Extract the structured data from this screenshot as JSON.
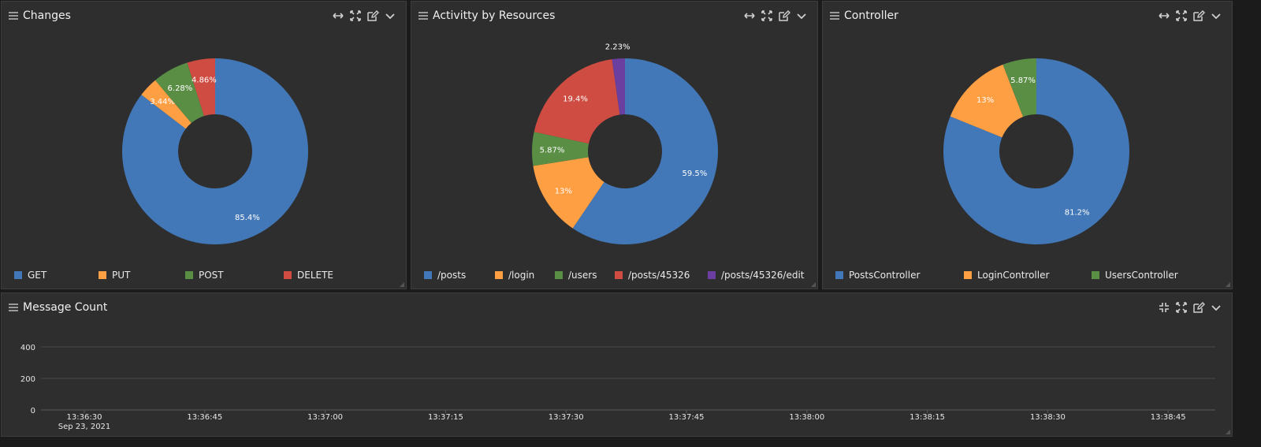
{
  "panels": {
    "changes": {
      "title": "Changes"
    },
    "activity": {
      "title": "Activitty by Resources"
    },
    "controller": {
      "title": "Controller"
    },
    "message_count": {
      "title": "Message Count"
    }
  },
  "colors": {
    "blue": "#4277b8",
    "orange": "#ff9f43",
    "green": "#5a8e45",
    "red": "#cf4c42",
    "purple": "#6a3fa0",
    "panel_bg": "#2e2e2e"
  },
  "icons": {
    "header_controls_top": [
      "expand-horizontal-icon",
      "fullscreen-icon",
      "edit-icon",
      "chevron-down-icon"
    ],
    "header_controls_bottom": [
      "collapse-icon",
      "fullscreen-icon",
      "edit-icon",
      "chevron-down-icon"
    ]
  },
  "chart_data": [
    {
      "type": "pie",
      "title": "Changes",
      "categories": [
        "GET",
        "PUT",
        "POST",
        "DELETE"
      ],
      "values": [
        85.4,
        3.44,
        6.28,
        4.86
      ],
      "slice_labels": [
        "85.4%",
        "3.44%",
        "6.28%",
        "4.86%"
      ],
      "colors": [
        "#4277b8",
        "#ff9f43",
        "#5a8e45",
        "#cf4c42"
      ],
      "legend_position": "bottom"
    },
    {
      "type": "pie",
      "title": "Activitty by Resources",
      "categories": [
        "/posts",
        "/login",
        "/users",
        "/posts/45326",
        "/posts/45326/edit"
      ],
      "values": [
        59.5,
        13,
        5.87,
        19.4,
        2.23
      ],
      "slice_labels": [
        "59.5%",
        "13%",
        "5.87%",
        "19.4%",
        "2.23%"
      ],
      "colors": [
        "#4277b8",
        "#ff9f43",
        "#5a8e45",
        "#cf4c42",
        "#6a3fa0"
      ],
      "legend_position": "bottom"
    },
    {
      "type": "pie",
      "title": "Controller",
      "categories": [
        "PostsController",
        "LoginController",
        "UsersController"
      ],
      "values": [
        81.2,
        13,
        5.87
      ],
      "slice_labels": [
        "81.2%",
        "13%",
        "5.87%"
      ],
      "colors": [
        "#4277b8",
        "#ff9f43",
        "#5a8e45"
      ],
      "legend_position": "bottom"
    },
    {
      "type": "line",
      "title": "Message Count",
      "x_ticks": [
        "13:36:30",
        "13:36:45",
        "13:37:00",
        "13:37:15",
        "13:37:30",
        "13:37:45",
        "13:38:00",
        "13:38:15",
        "13:38:30",
        "13:38:45"
      ],
      "x_date": "Sep 23, 2021",
      "y_ticks": [
        "0",
        "200",
        "400"
      ],
      "ylim": [
        0,
        400
      ],
      "series": [],
      "grid": true
    }
  ]
}
